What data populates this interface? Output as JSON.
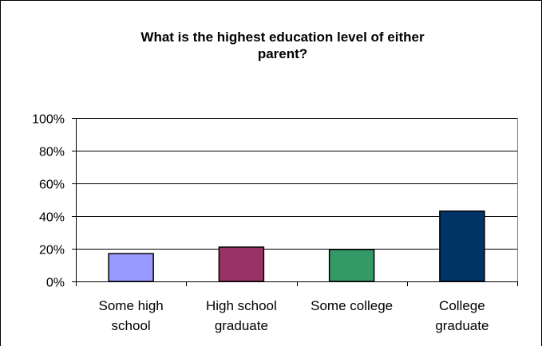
{
  "chart_data": {
    "type": "bar",
    "title_line1": "What is the highest education level of either",
    "title_line2": "parent?",
    "categories": [
      [
        "Some high",
        "school"
      ],
      [
        "High school",
        "graduate"
      ],
      [
        "Some college"
      ],
      [
        "College",
        "graduate"
      ]
    ],
    "values": [
      17,
      21,
      19.5,
      43
    ],
    "ylim": [
      0,
      100
    ],
    "yticks": [
      "0%",
      "20%",
      "40%",
      "60%",
      "80%",
      "100%"
    ],
    "grid": true,
    "legend": "none",
    "bar_colors": [
      "#9999ff",
      "#993366",
      "#339966",
      "#003366"
    ]
  }
}
